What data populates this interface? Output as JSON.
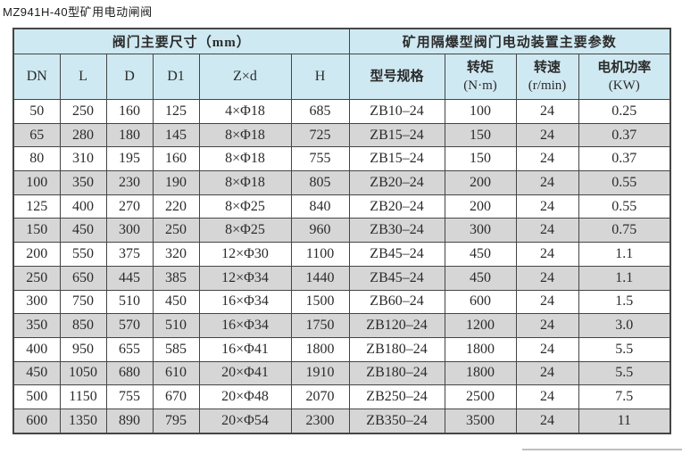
{
  "page_title": "MZ941H-40型矿用电动闸阀",
  "colors": {
    "header_bg": "#cfe9f2",
    "stripe_bg": "#d6d6d6",
    "border": "#454545",
    "text": "#2b2b2b"
  },
  "table": {
    "group_headers": [
      {
        "label": "阀门主要尺寸（mm）",
        "span": 6
      },
      {
        "label": "矿用隔爆型阀门电动装置主要参数",
        "span": 4
      }
    ],
    "columns": [
      {
        "label": "DN"
      },
      {
        "label": "L"
      },
      {
        "label": "D"
      },
      {
        "label": "D1"
      },
      {
        "label": "Z×d"
      },
      {
        "label": "H"
      },
      {
        "label": "型号规格"
      },
      {
        "label": "转矩",
        "sub": "(N·m)"
      },
      {
        "label": "转速",
        "sub": "(r/min)"
      },
      {
        "label": "电机功率",
        "sub": "(KW)"
      }
    ],
    "rows": [
      [
        "50",
        "250",
        "160",
        "125",
        "4×Φ18",
        "685",
        "ZB10–24",
        "100",
        "24",
        "0.25"
      ],
      [
        "65",
        "280",
        "180",
        "145",
        "8×Φ18",
        "725",
        "ZB15–24",
        "150",
        "24",
        "0.37"
      ],
      [
        "80",
        "310",
        "195",
        "160",
        "8×Φ18",
        "755",
        "ZB15–24",
        "150",
        "24",
        "0.37"
      ],
      [
        "100",
        "350",
        "230",
        "190",
        "8×Φ18",
        "805",
        "ZB20–24",
        "200",
        "24",
        "0.55"
      ],
      [
        "125",
        "400",
        "270",
        "220",
        "8×Φ25",
        "840",
        "ZB20–24",
        "200",
        "24",
        "0.55"
      ],
      [
        "150",
        "450",
        "300",
        "250",
        "8×Φ25",
        "960",
        "ZB30–24",
        "300",
        "24",
        "0.75"
      ],
      [
        "200",
        "550",
        "375",
        "320",
        "12×Φ30",
        "1100",
        "ZB45–24",
        "450",
        "24",
        "1.1"
      ],
      [
        "250",
        "650",
        "445",
        "385",
        "12×Φ34",
        "1440",
        "ZB45–24",
        "450",
        "24",
        "1.1"
      ],
      [
        "300",
        "750",
        "510",
        "450",
        "16×Φ34",
        "1500",
        "ZB60–24",
        "600",
        "24",
        "1.5"
      ],
      [
        "350",
        "850",
        "570",
        "510",
        "16×Φ34",
        "1750",
        "ZB120–24",
        "1200",
        "24",
        "3.0"
      ],
      [
        "400",
        "950",
        "655",
        "585",
        "16×Φ41",
        "1800",
        "ZB180–24",
        "1800",
        "24",
        "5.5"
      ],
      [
        "450",
        "1050",
        "680",
        "610",
        "20×Φ41",
        "1910",
        "ZB180–24",
        "1800",
        "24",
        "5.5"
      ],
      [
        "500",
        "1150",
        "755",
        "670",
        "20×Φ48",
        "2070",
        "ZB250–24",
        "2500",
        "24",
        "7.5"
      ],
      [
        "600",
        "1350",
        "890",
        "795",
        "20×Φ54",
        "2300",
        "ZB350–24",
        "3500",
        "24",
        "11"
      ]
    ]
  }
}
